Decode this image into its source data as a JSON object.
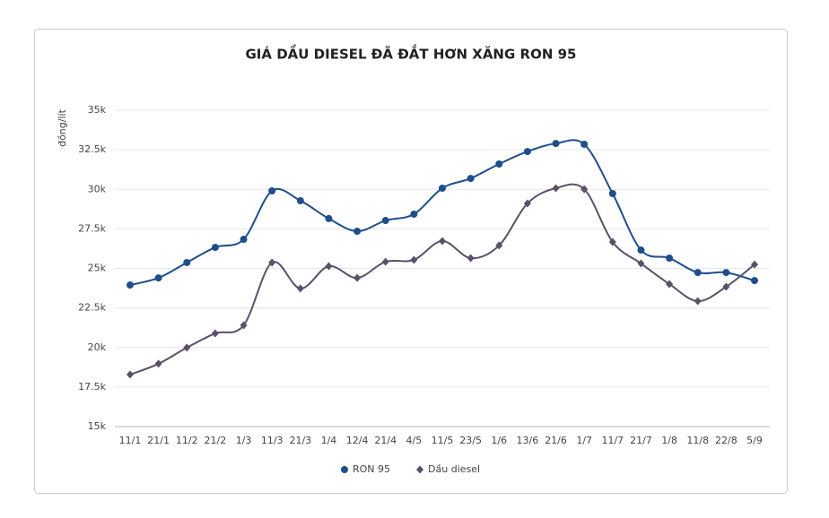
{
  "chart_data": {
    "type": "line",
    "title": "GIÁ DẦU DIESEL ĐÃ ĐẮT HƠN XĂNG RON 95",
    "y_label": "đồng/lít",
    "categories": [
      "11/1",
      "21/1",
      "11/2",
      "21/2",
      "1/3",
      "11/3",
      "21/3",
      "1/4",
      "12/4",
      "21/4",
      "4/5",
      "11/5",
      "23/5",
      "1/6",
      "13/6",
      "21/6",
      "1/7",
      "11/7",
      "21/7",
      "1/8",
      "11/8",
      "22/8",
      "5/9"
    ],
    "series": [
      {
        "name": "RON 95",
        "color": "#1f4e8c",
        "marker": "circle",
        "values": [
          23950,
          24400,
          25370,
          26330,
          26840,
          29900,
          29280,
          28150,
          27350,
          28030,
          28430,
          30070,
          30690,
          31600,
          32390,
          32900,
          32850,
          29730,
          26160,
          25650,
          24740,
          24740,
          24230
        ]
      },
      {
        "name": "Dầu diesel",
        "color": "#5a5068",
        "marker": "diamond",
        "values": [
          18290,
          18970,
          19990,
          20890,
          21400,
          25370,
          23730,
          25140,
          24400,
          25420,
          25540,
          26730,
          25650,
          26450,
          29110,
          30070,
          30010,
          26670,
          25310,
          24010,
          22930,
          23840,
          25250
        ]
      }
    ],
    "ylim": [
      15000,
      35000
    ],
    "yticks": [
      {
        "value": 15000,
        "label": "15k"
      },
      {
        "value": 17500,
        "label": "17.5k"
      },
      {
        "value": 20000,
        "label": "20k"
      },
      {
        "value": 22500,
        "label": "22.5k"
      },
      {
        "value": 25000,
        "label": "25k"
      },
      {
        "value": 27500,
        "label": "27.5k"
      },
      {
        "value": 30000,
        "label": "30k"
      },
      {
        "value": 32500,
        "label": "32.5k"
      },
      {
        "value": 35000,
        "label": "35k"
      }
    ],
    "grid": true,
    "legend": "bottom"
  }
}
